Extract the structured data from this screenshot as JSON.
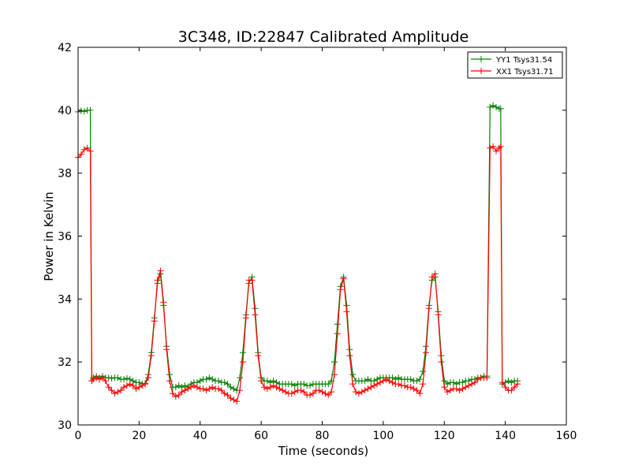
{
  "chart_data": {
    "type": "line",
    "title": "3C348, ID:22847 Calibrated Amplitude",
    "xlabel": "Time (seconds)",
    "ylabel": "Power in Kelvin",
    "xlim": [
      0,
      160
    ],
    "ylim": [
      30,
      42
    ],
    "xticks": [
      "0",
      "20",
      "40",
      "60",
      "80",
      "100",
      "120",
      "140",
      "160"
    ],
    "yticks": [
      "30",
      "32",
      "34",
      "36",
      "38",
      "40",
      "42"
    ],
    "grid": false,
    "legend_position": "top-right",
    "x": [
      0,
      1,
      2,
      3,
      4,
      4.5,
      5,
      6,
      7,
      8,
      9,
      10,
      11,
      12,
      13,
      14,
      15,
      16,
      17,
      18,
      19,
      20,
      21,
      22,
      23,
      24,
      25,
      26,
      27,
      28,
      29,
      30,
      31,
      32,
      33,
      34,
      35,
      36,
      37,
      38,
      39,
      40,
      41,
      42,
      43,
      44,
      45,
      46,
      47,
      48,
      49,
      50,
      51,
      52,
      53,
      54,
      55,
      56,
      57,
      58,
      59,
      60,
      61,
      62,
      63,
      64,
      65,
      66,
      67,
      68,
      69,
      70,
      71,
      72,
      73,
      74,
      75,
      76,
      77,
      78,
      79,
      80,
      81,
      82,
      83,
      84,
      85,
      86,
      87,
      88,
      89,
      90,
      91,
      92,
      93,
      94,
      95,
      96,
      97,
      98,
      99,
      100,
      101,
      102,
      103,
      104,
      105,
      106,
      107,
      108,
      109,
      110,
      111,
      112,
      113,
      114,
      115,
      116,
      117,
      118,
      119,
      120,
      121,
      122,
      123,
      124,
      125,
      126,
      127,
      128,
      129,
      130,
      131,
      132,
      133,
      134,
      135,
      136,
      137,
      138,
      138.5,
      139,
      140,
      141,
      142,
      143,
      144
    ],
    "series": [
      {
        "name": "YY1 Tsys31.54",
        "color": "#008000",
        "values": [
          39.95,
          39.98,
          39.96,
          40.0,
          40.0,
          31.4,
          31.5,
          31.55,
          31.5,
          31.55,
          31.5,
          31.5,
          31.48,
          31.5,
          31.5,
          31.45,
          31.45,
          31.48,
          31.45,
          31.4,
          31.35,
          31.35,
          31.3,
          31.32,
          31.6,
          32.3,
          33.4,
          34.5,
          34.8,
          33.8,
          32.5,
          31.6,
          31.2,
          31.2,
          31.25,
          31.2,
          31.25,
          31.2,
          31.3,
          31.35,
          31.35,
          31.4,
          31.45,
          31.45,
          31.5,
          31.45,
          31.4,
          31.4,
          31.35,
          31.35,
          31.3,
          31.2,
          31.15,
          31.1,
          31.5,
          32.3,
          33.5,
          34.5,
          34.7,
          33.7,
          32.3,
          31.5,
          31.4,
          31.4,
          31.35,
          31.4,
          31.35,
          31.3,
          31.3,
          31.3,
          31.3,
          31.3,
          31.25,
          31.3,
          31.3,
          31.3,
          31.25,
          31.25,
          31.3,
          31.3,
          31.3,
          31.3,
          31.3,
          31.3,
          31.4,
          32.0,
          33.2,
          34.4,
          34.7,
          33.8,
          32.4,
          31.6,
          31.4,
          31.4,
          31.4,
          31.4,
          31.45,
          31.4,
          31.4,
          31.45,
          31.5,
          31.5,
          31.5,
          31.5,
          31.5,
          31.45,
          31.5,
          31.45,
          31.45,
          31.45,
          31.45,
          31.4,
          31.4,
          31.45,
          31.7,
          32.5,
          33.8,
          34.6,
          34.7,
          33.6,
          32.2,
          31.4,
          31.3,
          31.35,
          31.35,
          31.3,
          31.35,
          31.35,
          31.4,
          31.4,
          31.45,
          31.45,
          31.5,
          31.5,
          31.55,
          31.55,
          40.1,
          40.15,
          40.1,
          40.05,
          40.05,
          31.3,
          31.35,
          31.4,
          31.35,
          31.4,
          31.4
        ]
      },
      {
        "name": "XX1 Tsys31.71",
        "color": "#ff0000",
        "values": [
          38.5,
          38.6,
          38.75,
          38.8,
          38.7,
          31.4,
          31.45,
          31.5,
          31.45,
          31.5,
          31.4,
          31.2,
          31.1,
          31.0,
          31.05,
          31.1,
          31.2,
          31.25,
          31.3,
          31.25,
          31.15,
          31.2,
          31.25,
          31.3,
          31.5,
          32.2,
          33.3,
          34.6,
          34.9,
          33.9,
          32.4,
          31.4,
          31.0,
          30.9,
          30.95,
          31.05,
          31.1,
          31.15,
          31.2,
          31.25,
          31.2,
          31.15,
          31.15,
          31.1,
          31.15,
          31.2,
          31.15,
          31.15,
          31.1,
          31.0,
          30.95,
          30.85,
          30.8,
          30.75,
          31.1,
          32.0,
          33.4,
          34.6,
          34.6,
          33.5,
          32.2,
          31.4,
          31.2,
          31.15,
          31.2,
          31.25,
          31.2,
          31.15,
          31.1,
          31.05,
          31.0,
          31.0,
          31.05,
          31.1,
          31.1,
          31.05,
          30.95,
          30.95,
          31.0,
          31.1,
          31.1,
          31.05,
          31.0,
          30.95,
          31.05,
          31.6,
          32.9,
          34.3,
          34.65,
          33.6,
          32.2,
          31.3,
          31.05,
          31.0,
          31.05,
          31.1,
          31.15,
          31.2,
          31.25,
          31.3,
          31.35,
          31.4,
          31.45,
          31.4,
          31.35,
          31.3,
          31.3,
          31.25,
          31.25,
          31.2,
          31.2,
          31.15,
          31.1,
          31.0,
          31.3,
          32.3,
          33.7,
          34.7,
          34.8,
          33.5,
          32.0,
          31.2,
          31.05,
          31.1,
          31.15,
          31.15,
          31.1,
          31.15,
          31.2,
          31.25,
          31.3,
          31.35,
          31.45,
          31.5,
          31.5,
          31.5,
          38.8,
          38.85,
          38.7,
          38.8,
          38.85,
          31.35,
          31.2,
          31.1,
          31.1,
          31.2,
          31.3
        ]
      }
    ]
  }
}
